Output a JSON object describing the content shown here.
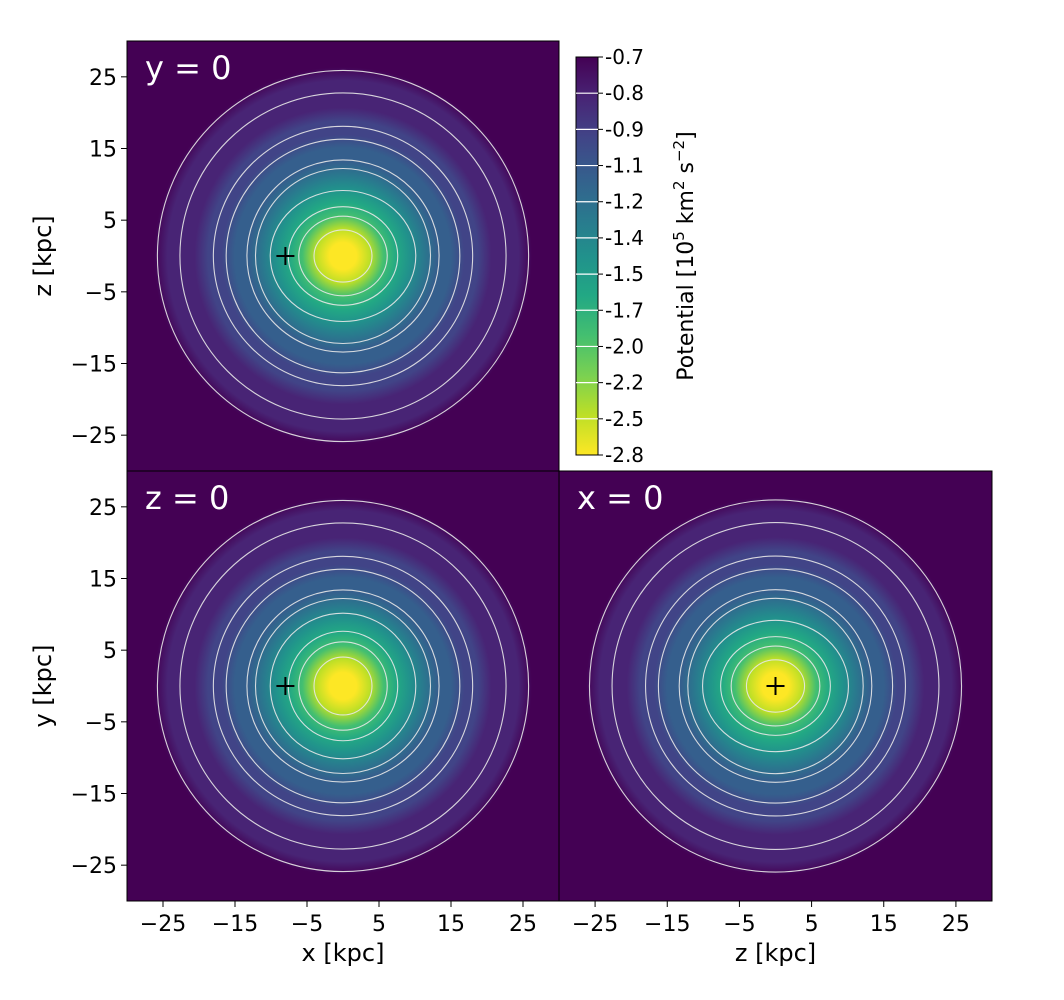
{
  "chart_data": [
    {
      "type": "heatmap",
      "title": "y = 0",
      "xlabel": "",
      "ylabel": "z [kpc]",
      "xlim": [
        -30,
        30
      ],
      "ylim": [
        -30,
        30
      ],
      "xticks": [],
      "yticks": [
        25,
        15,
        5,
        -5,
        -15,
        -25
      ],
      "ytick_labels": [
        "25",
        "15",
        "5",
        "−5",
        "−15",
        "−25"
      ],
      "marker": {
        "x": -8,
        "y": 0
      },
      "flattening": 0.9
    },
    {
      "type": "heatmap",
      "title": "z = 0",
      "xlabel": "x [kpc]",
      "ylabel": "y [kpc]",
      "xlim": [
        -30,
        30
      ],
      "ylim": [
        -30,
        30
      ],
      "xticks": [
        -25,
        -15,
        -5,
        5,
        15,
        25
      ],
      "xtick_labels": [
        "−25",
        "−15",
        "−5",
        "5",
        "15",
        "25"
      ],
      "yticks": [
        25,
        15,
        5,
        -5,
        -15,
        -25
      ],
      "ytick_labels": [
        "25",
        "15",
        "5",
        "−5",
        "−15",
        "−25"
      ],
      "marker": {
        "x": -8,
        "y": 0
      },
      "flattening": 1.0
    },
    {
      "type": "heatmap",
      "title": "x = 0",
      "xlabel": "z [kpc]",
      "ylabel": "",
      "xlim": [
        -30,
        30
      ],
      "ylim": [
        -30,
        30
      ],
      "xticks": [
        -25,
        -15,
        -5,
        5,
        15,
        25
      ],
      "xtick_labels": [
        "−25",
        "−15",
        "−5",
        "5",
        "15",
        "25"
      ],
      "yticks": [],
      "marker": {
        "x": 0,
        "y": 0
      },
      "flattening": 0.9
    }
  ],
  "colorbar": {
    "label_prefix": "Potential [10",
    "label_exp1": "5",
    "label_mid": " km",
    "label_exp2": "2",
    "label_mid2": " s",
    "label_exp3": "−2",
    "label_suffix": "]",
    "tick_labels": [
      "-0.7",
      "-0.8",
      "-0.9",
      "-1.1",
      "-1.2",
      "-1.4",
      "-1.5",
      "-1.7",
      "-2.0",
      "-2.2",
      "-2.5",
      "-2.8"
    ],
    "range": [
      -2.8,
      -0.7
    ],
    "colormap": "viridis",
    "colors": [
      "#440154",
      "#482475",
      "#414487",
      "#355f8d",
      "#2a788e",
      "#21918c",
      "#22a884",
      "#44bf70",
      "#7ad151",
      "#bddf26",
      "#fde725"
    ]
  },
  "contour_levels": [
    -2.5,
    -2.2,
    -2.0,
    -1.7,
    -1.5,
    -1.4,
    -1.2,
    -1.1,
    -0.9,
    -0.8
  ],
  "contour_color": "#e8e8e8",
  "marker_color": "#000000"
}
